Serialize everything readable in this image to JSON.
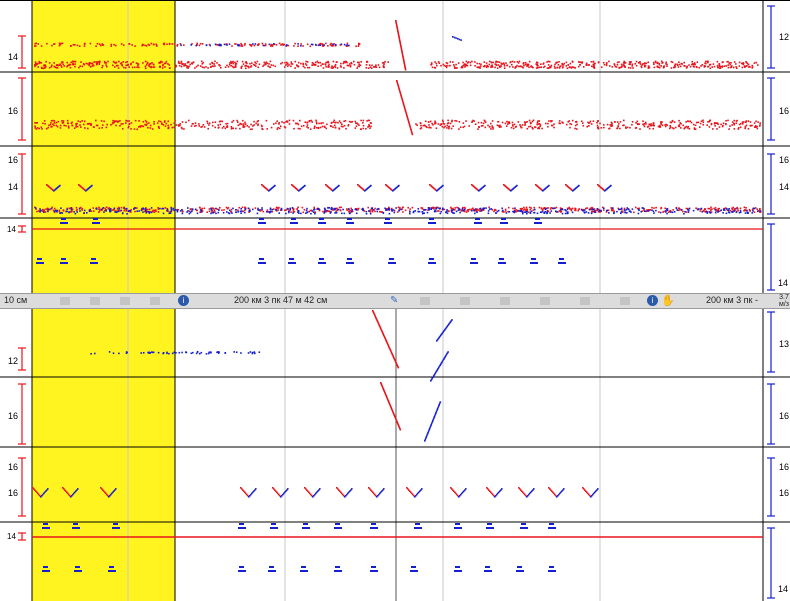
{
  "colors": {
    "red": "#e8141c",
    "blue": "#1420d0",
    "highlight": "#fff41f",
    "grid": "#c8c8c8",
    "border": "#000000"
  },
  "top": {
    "ch1": {
      "left_label": "14",
      "right_label": "12"
    },
    "ch2": {
      "left_label": "16",
      "right_label": "16"
    },
    "ch3": {
      "left_label_a": "16",
      "left_label_b": "14",
      "right_label_a": "16",
      "right_label_b": "14"
    },
    "ch4": {
      "left_label": "14",
      "right_label": "14"
    }
  },
  "status": {
    "left_text": "10 см",
    "center_text": "200 км 3 пк 47 м 42 см",
    "right_text": "200 км 3 пк -",
    "speed_top": "3.7",
    "speed_bottom": "м/з",
    "icons": [
      "info-icon",
      "pencil-icon",
      "info-icon",
      "hand-icon"
    ]
  },
  "bottom": {
    "ch1": {
      "left_label": "12",
      "right_label": "13"
    },
    "ch2": {
      "left_label": "16",
      "right_label": "16"
    },
    "ch3": {
      "left_label_a": "16",
      "left_label_b": "16",
      "right_label_a": "16",
      "right_label_b": "16"
    },
    "ch4": {
      "left_label": "14",
      "right_label": "14"
    }
  }
}
